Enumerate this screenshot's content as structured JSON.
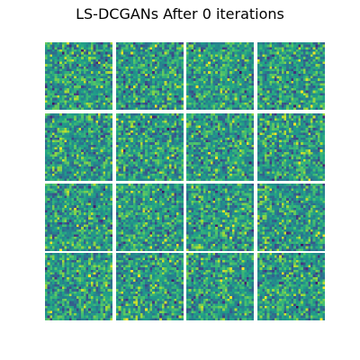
{
  "figure": {
    "title": "LS-DCGANs After 0 iterations"
  },
  "grid": {
    "rows": 4,
    "cols": 4,
    "sample_resolution": 28,
    "colormap": "viridis"
  },
  "colors": {
    "background": "#ffffff",
    "viridis": [
      "#440154",
      "#46327e",
      "#365c8d",
      "#277f8e",
      "#1fa187",
      "#4ac16d",
      "#a0da39",
      "#fde725"
    ]
  }
}
